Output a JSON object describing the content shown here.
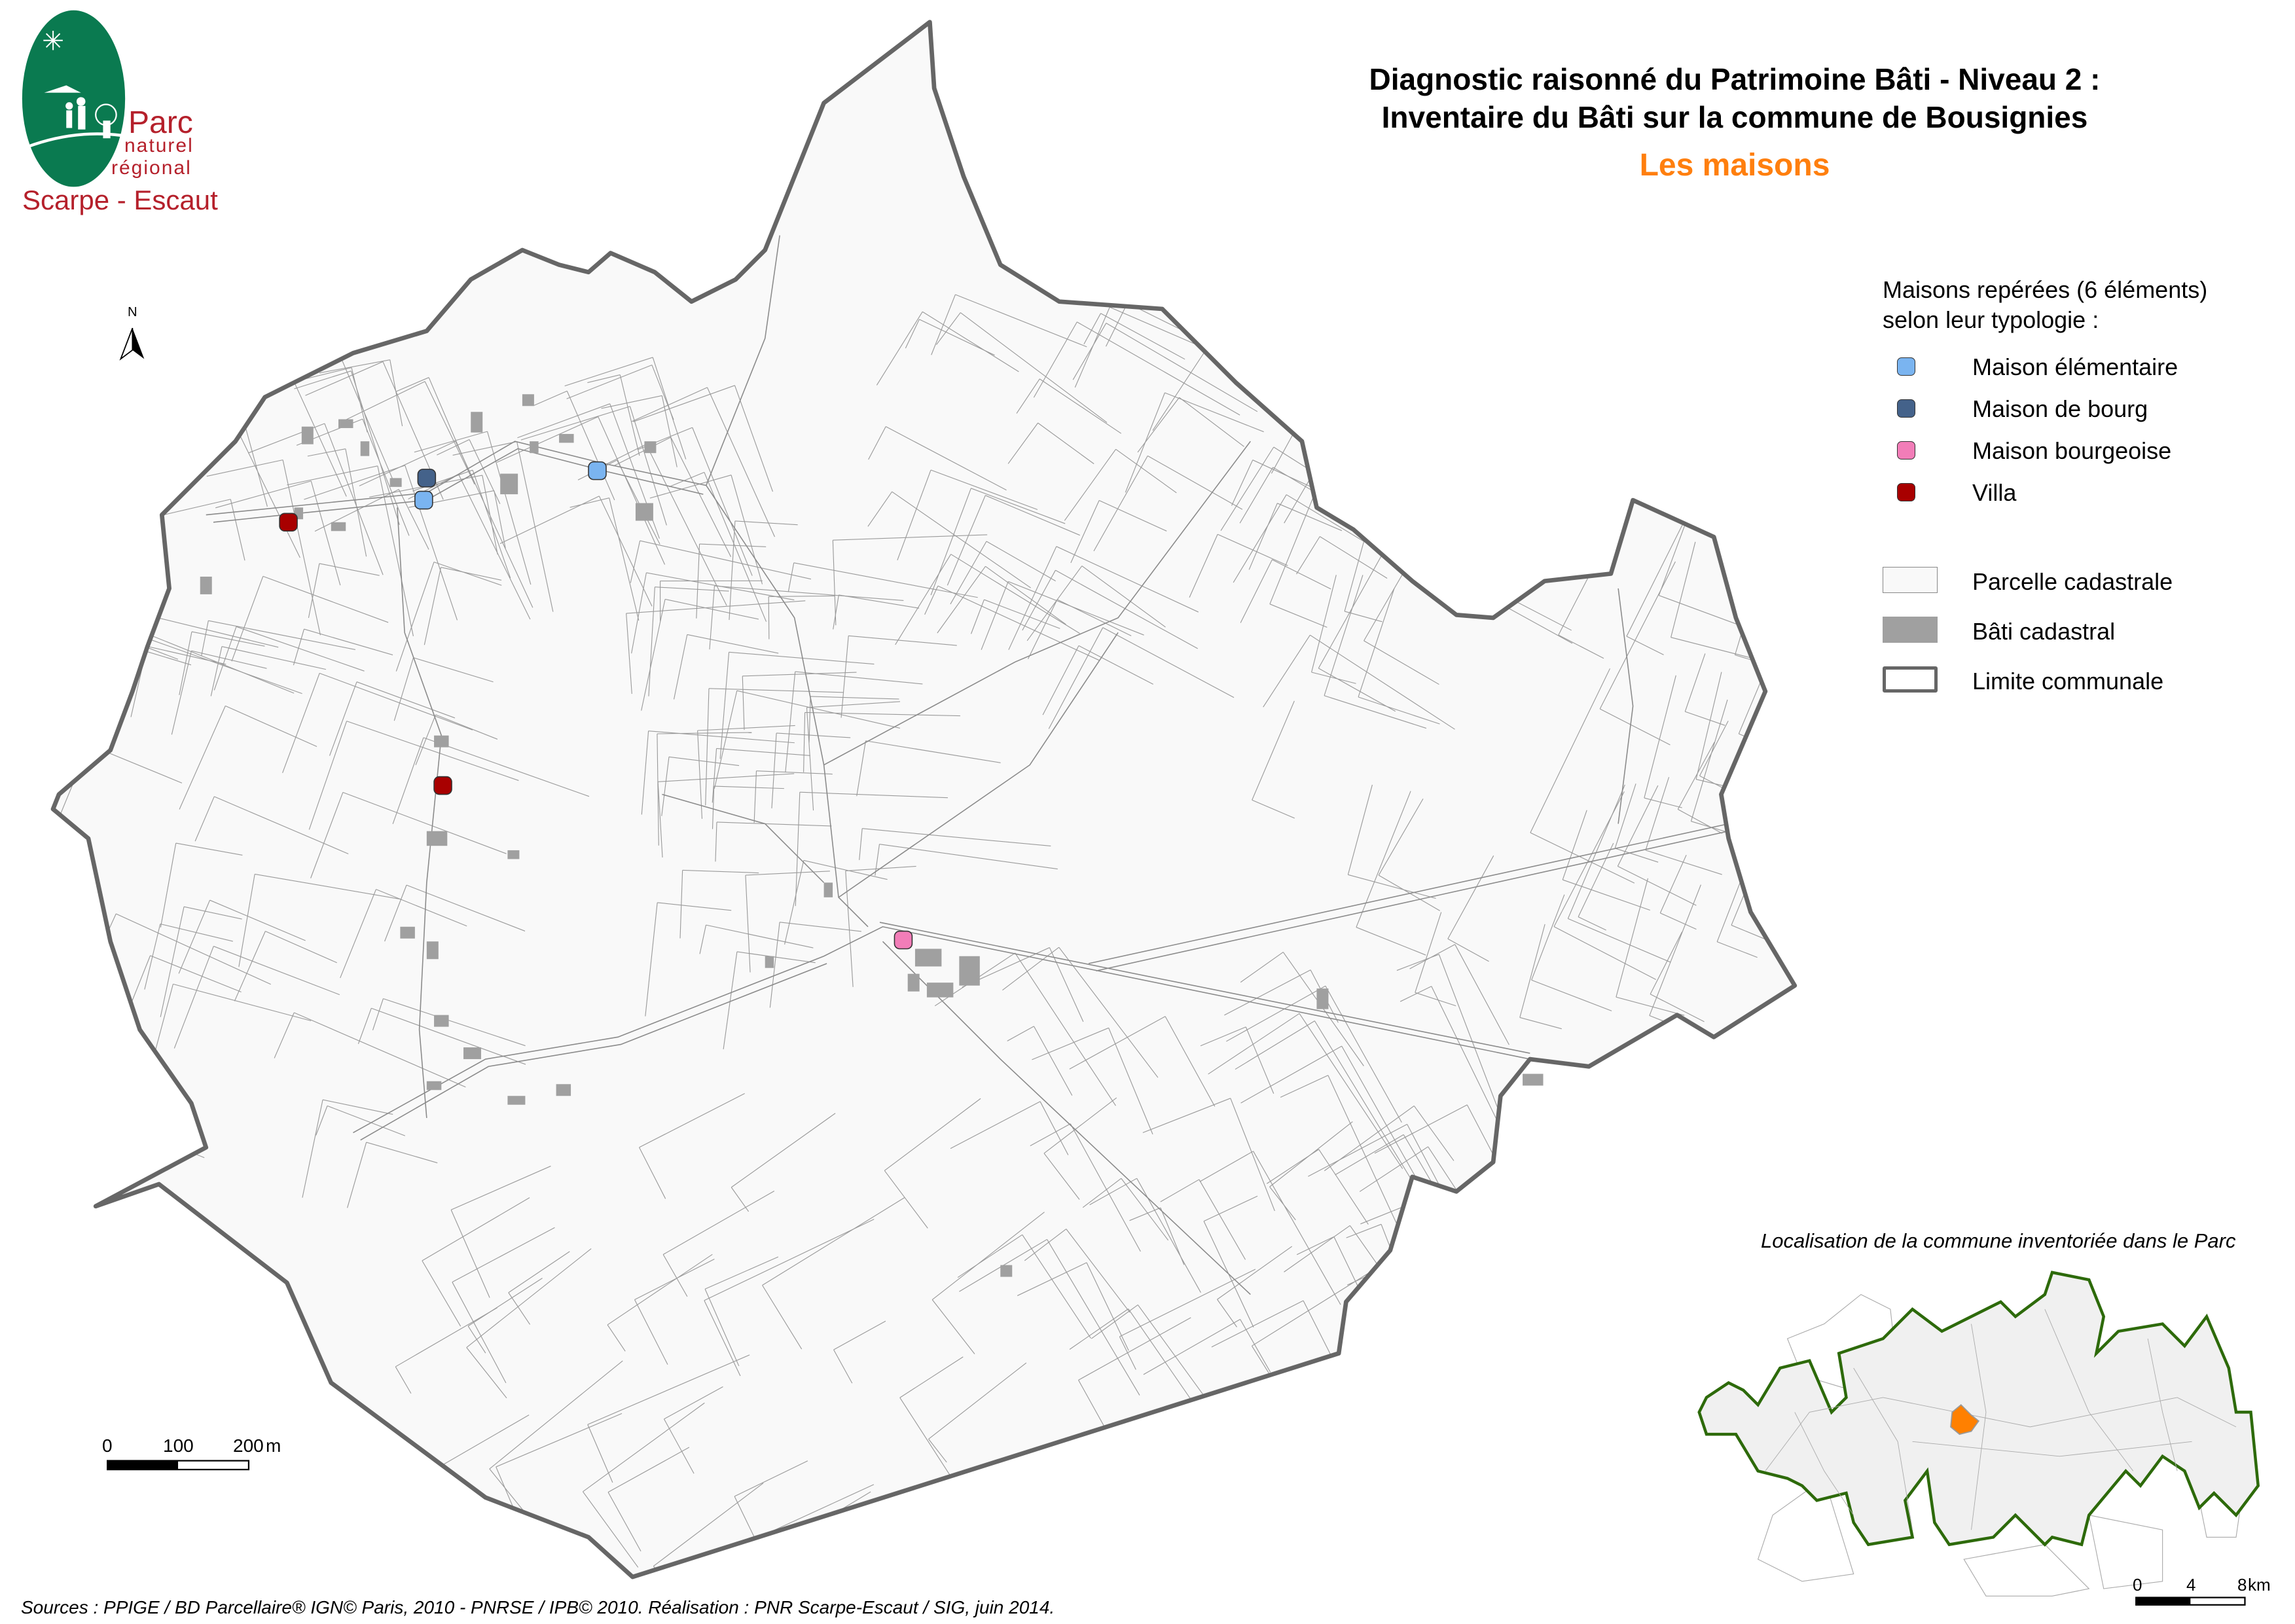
{
  "header": {
    "title_line1": "Diagnostic raisonné du Patrimoine Bâti - Niveau 2 :",
    "title_line2": "Inventaire du Bâti sur la commune de Bousignies",
    "subtitle": "Les maisons",
    "subtitle_color": "#ff7f0e"
  },
  "logo": {
    "line1": "Parc",
    "line2": "naturel",
    "line3": "régional",
    "line4": "Scarpe - Escaut",
    "green": "#0a7a50",
    "red": "#b5202b"
  },
  "north_arrow": {
    "label": "N"
  },
  "legend": {
    "heading_line1": "Maisons repérées (6 éléments)",
    "heading_line2": "selon leur typologie :",
    "points": [
      {
        "label": "Maison élémentaire",
        "color": "#7ab4f0"
      },
      {
        "label": "Maison de bourg",
        "color": "#44628a"
      },
      {
        "label": "Maison bourgeoise",
        "color": "#f27db8"
      },
      {
        "label": "Villa",
        "color": "#a80000"
      }
    ],
    "layers": [
      {
        "label": "Parcelle cadastrale",
        "fill": "#f9f9f9",
        "stroke": "#888888"
      },
      {
        "label": "Bâti cadastral",
        "fill": "#a0a0a0"
      },
      {
        "label": "Limite communale",
        "stroke": "#666666"
      }
    ]
  },
  "scale_bar": {
    "ticks": [
      "0",
      "100",
      "200"
    ],
    "unit": "m"
  },
  "locator": {
    "title": "Localisation de la commune inventoriée dans le Parc",
    "park_border_color": "#2d6a0a",
    "commune_color": "#ff8000",
    "scale_ticks": [
      "0",
      "4",
      "8"
    ],
    "scale_unit": "km"
  },
  "sources": "Sources : PPIGE / BD Parcellaire® IGN© Paris, 2010 - PNRSE / IPB© 2010. Réalisation : PNR Scarpe-Escaut / SIG, juin 2014."
}
